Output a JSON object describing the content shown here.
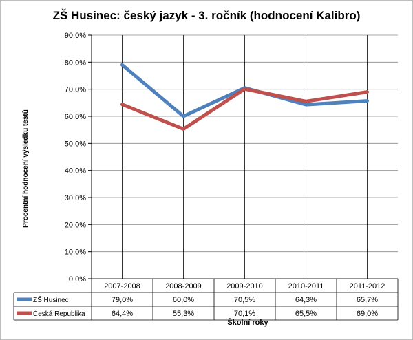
{
  "chart_data": {
    "type": "line",
    "title": "ZŠ Husinec: český jazyk - 3. ročník (hodnocení Kalibro)",
    "ylabel": "Procentní hodnocení výsledku testů",
    "xlabel": "Školní roky",
    "categories": [
      "2007-2008",
      "2008-2009",
      "2009-2010",
      "2010-2011",
      "2011-2012"
    ],
    "ylim": [
      0,
      90
    ],
    "yticks": [
      0,
      10,
      20,
      30,
      40,
      50,
      60,
      70,
      80,
      90
    ],
    "ytick_labels": [
      "0,0%",
      "10,0%",
      "20,0%",
      "30,0%",
      "40,0%",
      "50,0%",
      "60,0%",
      "70,0%",
      "80,0%",
      "90,0%"
    ],
    "series": [
      {
        "name": "ZŠ Husinec",
        "color": "#4f81bd",
        "values": [
          79.0,
          60.0,
          70.5,
          64.3,
          65.7
        ],
        "value_labels": [
          "79,0%",
          "60,0%",
          "70,5%",
          "64,3%",
          "65,7%"
        ]
      },
      {
        "name": "Česká Republika",
        "color": "#c0504d",
        "values": [
          64.4,
          55.3,
          70.1,
          65.5,
          69.0
        ],
        "value_labels": [
          "64,4%",
          "55,3%",
          "70,1%",
          "65,5%",
          "69,0%"
        ]
      }
    ],
    "grid": true,
    "legend": "data-table",
    "data_table": true
  }
}
